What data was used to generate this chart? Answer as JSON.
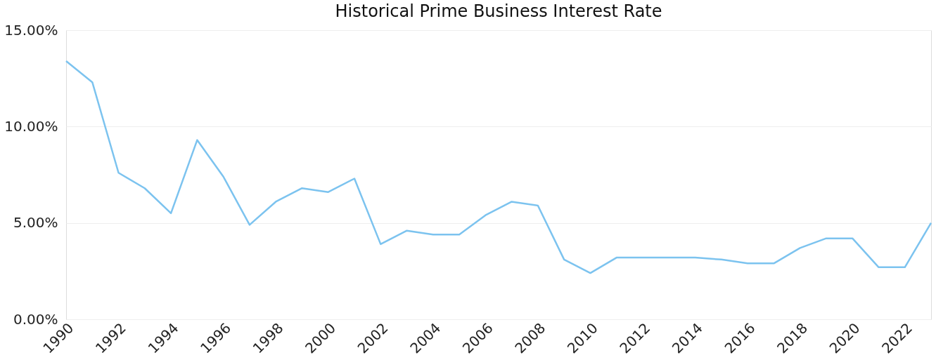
{
  "chart_data": {
    "type": "line",
    "title": "Historical Prime Business Interest Rate",
    "x": [
      1990,
      1991,
      1992,
      1993,
      1994,
      1995,
      1996,
      1997,
      1998,
      1999,
      2000,
      2001,
      2002,
      2003,
      2004,
      2005,
      2006,
      2007,
      2008,
      2009,
      2010,
      2011,
      2012,
      2013,
      2014,
      2015,
      2016,
      2017,
      2018,
      2019,
      2020,
      2021,
      2022,
      2023
    ],
    "series": [
      {
        "color": "#7cc3ef",
        "values": [
          13.4,
          12.3,
          7.6,
          6.8,
          5.5,
          9.3,
          7.4,
          4.9,
          6.1,
          6.8,
          6.6,
          7.3,
          3.9,
          4.6,
          4.4,
          4.4,
          5.4,
          6.1,
          5.9,
          3.1,
          2.4,
          3.2,
          3.2,
          3.2,
          3.2,
          3.1,
          2.9,
          2.9,
          3.7,
          4.2,
          4.2,
          2.7,
          2.7,
          5.0
        ]
      }
    ],
    "xlim": [
      1990,
      2023
    ],
    "xticks": [
      1990,
      1992,
      1994,
      1996,
      1998,
      2000,
      2002,
      2004,
      2006,
      2008,
      2010,
      2012,
      2014,
      2016,
      2018,
      2020,
      2022
    ],
    "ylim": [
      0,
      15
    ],
    "yticks": [
      {
        "value": 0,
        "label": "0.00%"
      },
      {
        "value": 5,
        "label": "5.00%"
      },
      {
        "value": 10,
        "label": "10.00%"
      },
      {
        "value": 15,
        "label": "15.00%"
      }
    ],
    "grid": "y",
    "legend": false,
    "marker": "none",
    "line_style": "solid"
  }
}
